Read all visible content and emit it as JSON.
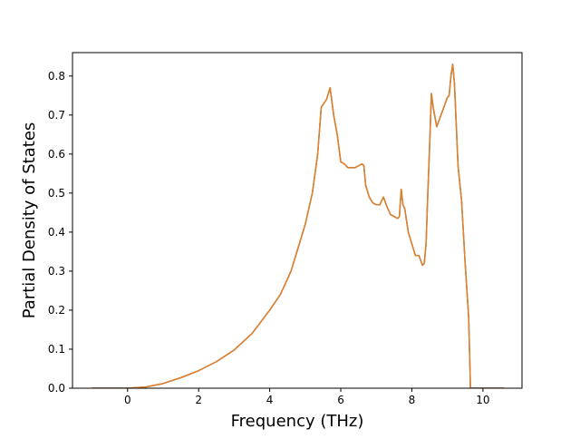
{
  "colors": {
    "line": "#e67e22",
    "line_under": "#3a77b8",
    "axes": "#000000",
    "background": "#ffffff"
  },
  "chart_data": {
    "type": "line",
    "xlabel": "Frequency (THz)",
    "ylabel": "Partial Density of States",
    "xlim": [
      -1.55,
      11.1
    ],
    "ylim": [
      0.0,
      0.86
    ],
    "xticks": [
      0,
      2,
      4,
      6,
      8,
      10
    ],
    "xtick_labels": [
      "0",
      "2",
      "4",
      "6",
      "8",
      "10"
    ],
    "yticks": [
      0.0,
      0.1,
      0.2,
      0.3,
      0.4,
      0.5,
      0.6,
      0.7,
      0.8
    ],
    "ytick_labels": [
      "0.0",
      "0.1",
      "0.2",
      "0.3",
      "0.4",
      "0.5",
      "0.6",
      "0.7",
      "0.8"
    ],
    "grid": false,
    "legend": "none",
    "series": [
      {
        "x": [
          -1.0,
          -0.5,
          0.0,
          0.5,
          1.0,
          1.5,
          2.0,
          2.5,
          3.0,
          3.5,
          4.0,
          4.3,
          4.6,
          4.8,
          5.0,
          5.2,
          5.35,
          5.45,
          5.6,
          5.65,
          5.7,
          5.8,
          5.9,
          6.0,
          6.1,
          6.2,
          6.3,
          6.4,
          6.5,
          6.6,
          6.65,
          6.7,
          6.8,
          6.9,
          7.0,
          7.1,
          7.2,
          7.3,
          7.4,
          7.5,
          7.6,
          7.65,
          7.7,
          7.75,
          7.8,
          7.9,
          8.0,
          8.1,
          8.2,
          8.3,
          8.35,
          8.4,
          8.45,
          8.5,
          8.55,
          8.6,
          8.7,
          8.8,
          8.9,
          9.0,
          9.05,
          9.1,
          9.15,
          9.2,
          9.3,
          9.4,
          9.5,
          9.6,
          9.65,
          9.8,
          10.0,
          10.6
        ],
        "y": [
          0.0,
          0.0,
          0.0,
          0.003,
          0.012,
          0.027,
          0.045,
          0.068,
          0.098,
          0.14,
          0.2,
          0.24,
          0.3,
          0.36,
          0.42,
          0.5,
          0.6,
          0.72,
          0.74,
          0.755,
          0.77,
          0.7,
          0.65,
          0.58,
          0.575,
          0.565,
          0.565,
          0.565,
          0.57,
          0.575,
          0.57,
          0.52,
          0.49,
          0.475,
          0.47,
          0.47,
          0.49,
          0.465,
          0.445,
          0.44,
          0.435,
          0.44,
          0.51,
          0.47,
          0.46,
          0.4,
          0.37,
          0.34,
          0.34,
          0.315,
          0.32,
          0.37,
          0.5,
          0.62,
          0.755,
          0.72,
          0.67,
          0.695,
          0.72,
          0.745,
          0.75,
          0.8,
          0.83,
          0.78,
          0.57,
          0.48,
          0.32,
          0.18,
          0.0,
          0.0,
          0.0,
          0.0
        ]
      }
    ]
  }
}
